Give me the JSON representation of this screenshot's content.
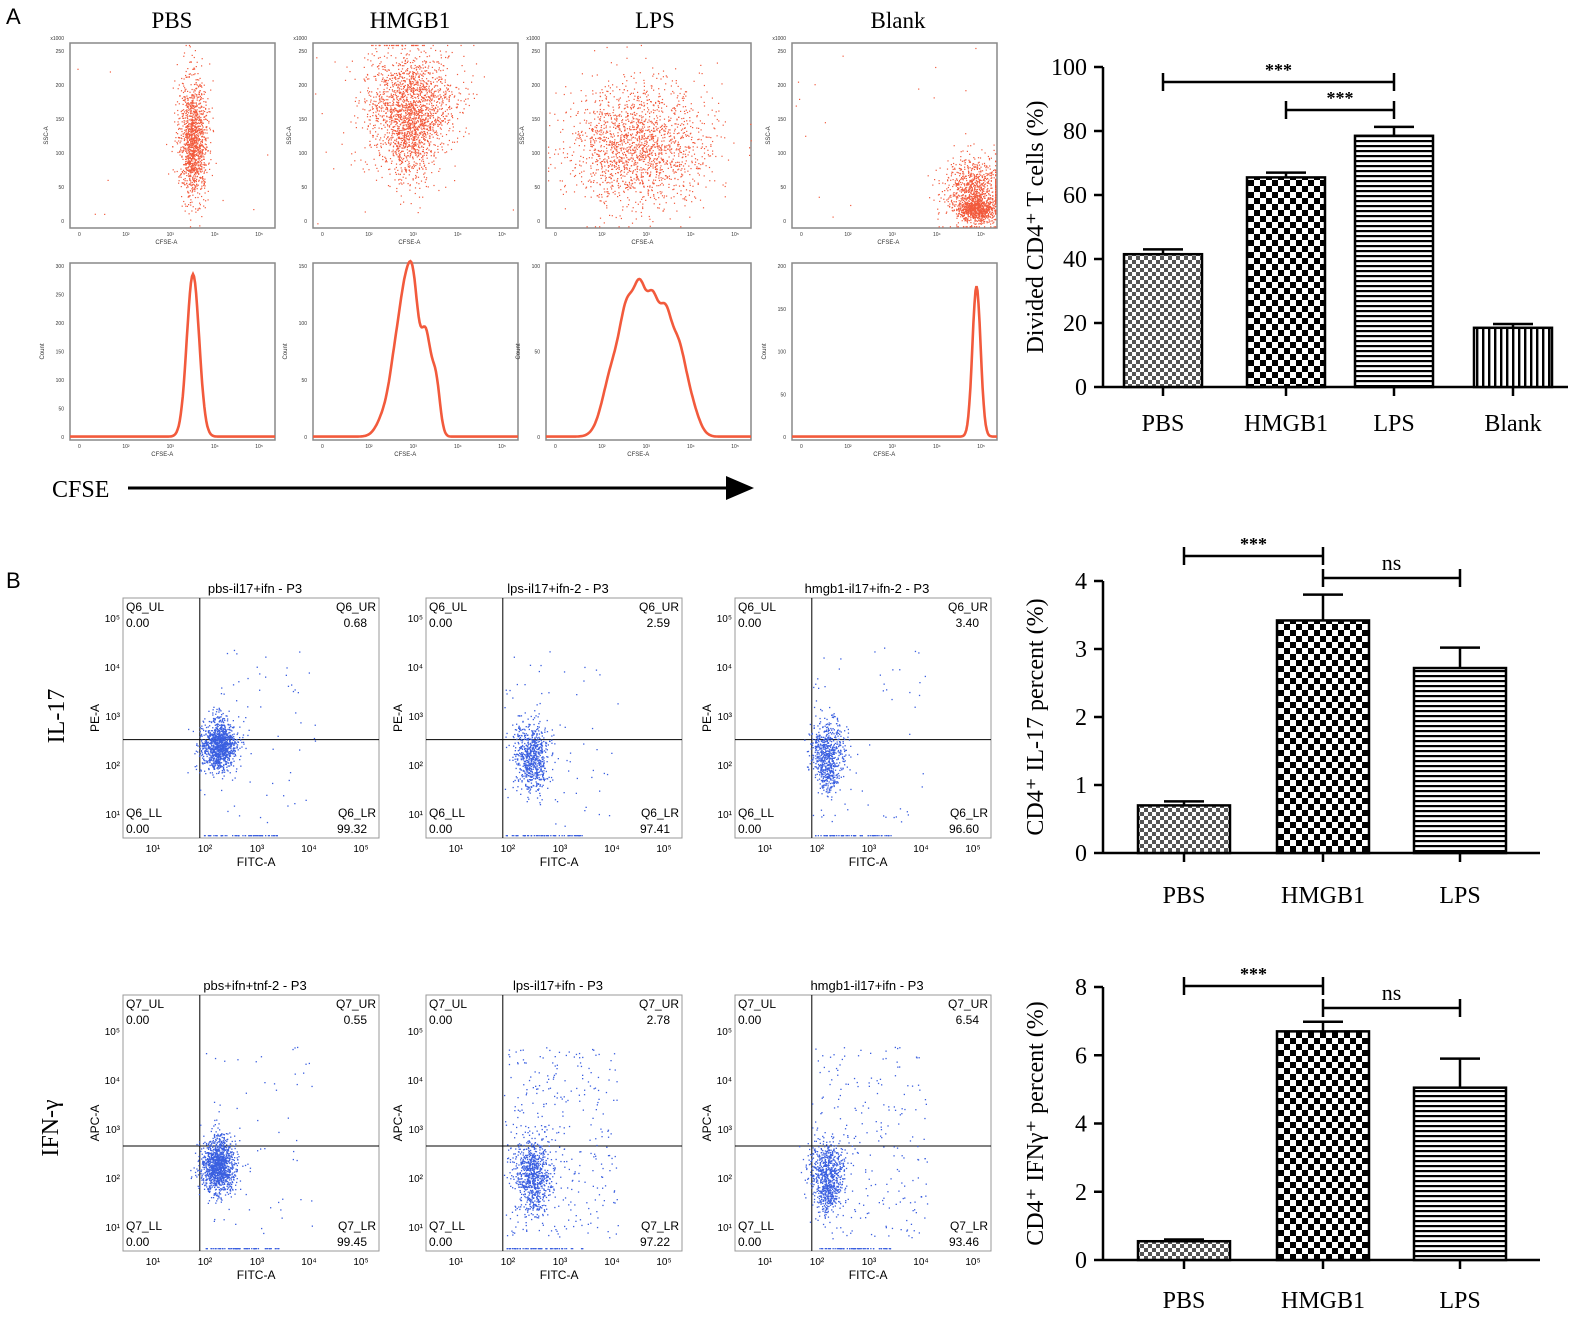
{
  "panel_a": {
    "label": "A",
    "groups": [
      "PBS",
      "HMGB1",
      "LPS",
      "Blank"
    ],
    "scatter_xlabel": "CFSE-A",
    "scatter_ylabel": "SSC-A",
    "scatter_yunit": "x1000",
    "scatter_yticks": [
      "250",
      "200",
      "150",
      "100",
      "50",
      "0"
    ],
    "log_ticks": [
      "0",
      "10²",
      "10³",
      "10⁴",
      "10⁵"
    ],
    "hist_xlabel": "CFSE-A",
    "hist_ylabel": "Count",
    "hist_yticks": [
      [
        "300",
        "250",
        "200",
        "150",
        "100",
        "50",
        "0"
      ],
      [
        "150",
        "100",
        "50",
        "0"
      ],
      [
        "100",
        "50",
        "0"
      ],
      [
        "200",
        "150",
        "100",
        "50",
        "0"
      ]
    ],
    "cfse_axis_label": "CFSE"
  },
  "panel_b": {
    "label": "B",
    "row_labels": [
      "IL-17",
      "IFN-γ"
    ],
    "flow_xlabel": "FITC-A",
    "flow_ylabels": [
      "PE-A",
      "APC-A"
    ],
    "flow_ticks": [
      "10¹",
      "10²",
      "10³",
      "10⁴",
      "10⁵"
    ],
    "il17_plots": [
      {
        "title": "pbs-il17+ifn - P3",
        "ul": "Q6_UL",
        "ul_val": "0.00",
        "ur": "Q6_UR",
        "ur_val": "0.68",
        "ll": "Q6_LL",
        "ll_val": "0.00",
        "lr": "Q6_LR",
        "lr_val": "99.32"
      },
      {
        "title": "lps-il17+ifn-2 - P3",
        "ul": "Q6_UL",
        "ul_val": "0.00",
        "ur": "Q6_UR",
        "ur_val": "2.59",
        "ll": "Q6_LL",
        "ll_val": "0.00",
        "lr": "Q6_LR",
        "lr_val": "97.41"
      },
      {
        "title": "hmgb1-il17+ifn-2 - P3",
        "ul": "Q6_UL",
        "ul_val": "0.00",
        "ur": "Q6_UR",
        "ur_val": "3.40",
        "ll": "Q6_LL",
        "ll_val": "0.00",
        "lr": "Q6_LR",
        "lr_val": "96.60"
      }
    ],
    "ifn_plots": [
      {
        "title": "pbs+ifn+tnf-2 - P3",
        "ul": "Q7_UL",
        "ul_val": "0.00",
        "ur": "Q7_UR",
        "ur_val": "0.55",
        "ll": "Q7_LL",
        "ll_val": "0.00",
        "lr": "Q7_LR",
        "lr_val": "99.45"
      },
      {
        "title": "lps-il17+ifn - P3",
        "ul": "Q7_UL",
        "ul_val": "0.00",
        "ur": "Q7_UR",
        "ur_val": "2.78",
        "ll": "Q7_LL",
        "ll_val": "0.00",
        "lr": "Q7_LR",
        "lr_val": "97.22"
      },
      {
        "title": "hmgb1-il17+ifn - P3",
        "ul": "Q7_UL",
        "ul_val": "0.00",
        "ur": "Q7_UR",
        "ur_val": "6.54",
        "ll": "Q7_LL",
        "ll_val": "0.00",
        "lr": "Q7_LR",
        "lr_val": "93.46"
      }
    ]
  },
  "colors": {
    "flow_red": "#f25a3c",
    "flow_blue": "#3a5fe0",
    "axis": "#000000"
  },
  "chart_data": [
    {
      "id": "chart_a",
      "type": "bar",
      "categories": [
        "PBS",
        "HMGB1",
        "LPS",
        "Blank"
      ],
      "values": [
        41.5,
        65.5,
        78.5,
        18.5
      ],
      "errors": [
        1.5,
        1.5,
        2.8,
        1.2
      ],
      "patterns": [
        "fine-checker",
        "checker",
        "hstripe",
        "vstripe"
      ],
      "ylim": [
        0,
        100
      ],
      "yticks": [
        0,
        20,
        40,
        60,
        80,
        100
      ],
      "title": "",
      "xlabel": "",
      "ylabel": "Divided CD4⁺ T cells (%)",
      "significance": [
        {
          "from": "PBS",
          "to": "LPS",
          "label": "***"
        },
        {
          "from": "HMGB1",
          "to": "LPS",
          "label": "***"
        }
      ]
    },
    {
      "id": "chart_b1",
      "type": "bar",
      "categories": [
        "PBS",
        "HMGB1",
        "LPS"
      ],
      "values": [
        0.7,
        3.42,
        2.72
      ],
      "errors": [
        0.06,
        0.38,
        0.3
      ],
      "patterns": [
        "fine-checker",
        "checker",
        "hstripe"
      ],
      "ylim": [
        0,
        4
      ],
      "yticks": [
        0,
        1,
        2,
        3,
        4
      ],
      "title": "",
      "xlabel": "",
      "ylabel": "CD4⁺ IL-17 percent (%)",
      "significance": [
        {
          "from": "PBS",
          "to": "HMGB1",
          "label": "***"
        },
        {
          "from": "HMGB1",
          "to": "LPS",
          "label": "ns"
        }
      ]
    },
    {
      "id": "chart_b2",
      "type": "bar",
      "categories": [
        "PBS",
        "HMGB1",
        "LPS"
      ],
      "values": [
        0.55,
        6.7,
        5.05
      ],
      "errors": [
        0.05,
        0.28,
        0.85
      ],
      "patterns": [
        "fine-checker",
        "checker",
        "hstripe"
      ],
      "ylim": [
        0,
        8
      ],
      "yticks": [
        0,
        2,
        4,
        6,
        8
      ],
      "title": "",
      "xlabel": "",
      "ylabel": "CD4⁺ IFNγ⁺ percent (%)",
      "significance": [
        {
          "from": "PBS",
          "to": "HMGB1",
          "label": "***"
        },
        {
          "from": "HMGB1",
          "to": "LPS",
          "label": "ns"
        }
      ]
    }
  ]
}
